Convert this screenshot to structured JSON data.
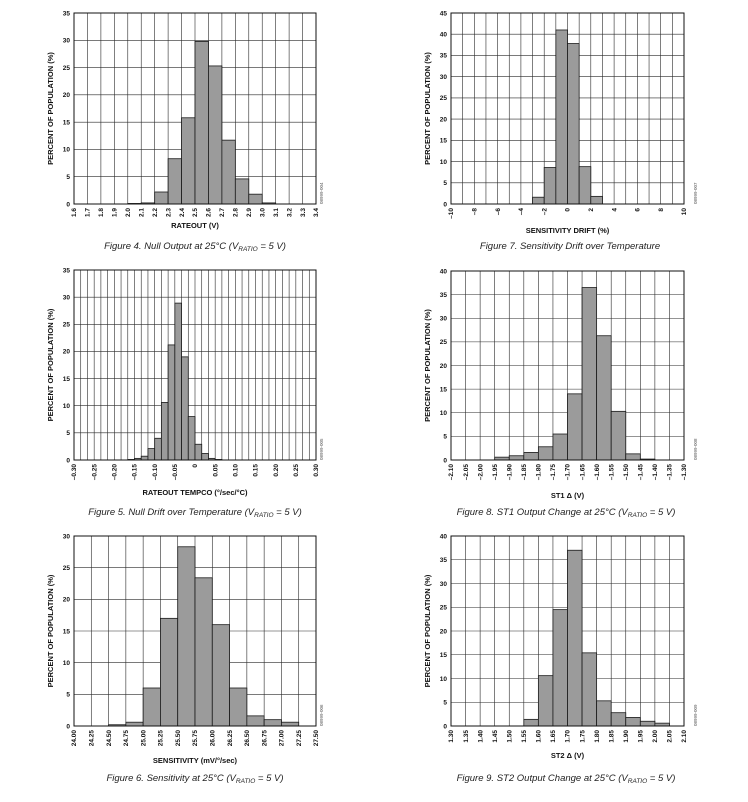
{
  "chart_data": [
    {
      "type": "bar",
      "title": "Figure 4. Null Output at 25°C (VRATIO = 5 V)",
      "caption_main": "Figure 4. Null Output at 25°C (V",
      "caption_sub": "RATIO",
      "caption_end": " = 5 V)",
      "xlabel": "RATEOUT (V)",
      "ylabel": "PERCENT OF POPULATION (%)",
      "code": "08999-004",
      "ylim": [
        0,
        35
      ],
      "yticks": [
        0,
        5,
        10,
        15,
        20,
        25,
        30,
        35
      ],
      "x_ticks": [
        "1.6",
        "1.7",
        "1.8",
        "1.9",
        "2.0",
        "2.1",
        "2.2",
        "2.3",
        "2.4",
        "2.5",
        "2.6",
        "2.7",
        "2.8",
        "2.9",
        "3.0",
        "3.1",
        "3.2",
        "3.3",
        "3.4"
      ],
      "values": [
        0,
        0,
        0,
        0,
        0.1,
        0.2,
        2.2,
        8.3,
        15.8,
        29.8,
        25.3,
        11.7,
        4.6,
        1.8,
        0.2,
        0,
        0,
        0
      ]
    },
    {
      "type": "bar",
      "title": "Figure 7. Sensitivity Drift over Temperature",
      "caption_main": "Figure 7. Sensitivity Drift over Temperature",
      "caption_sub": "",
      "caption_end": "",
      "xlabel": "SENSITIVITY DRIFT (%)",
      "ylabel": "PERCENT OF POPULATION (%)",
      "code": "08999-007",
      "ylim": [
        0,
        45
      ],
      "yticks": [
        0,
        5,
        10,
        15,
        20,
        25,
        30,
        35,
        40,
        45
      ],
      "x_ticks": [
        "–10",
        "–8",
        "–6",
        "–4",
        "–2",
        "0",
        "2",
        "4",
        "6",
        "8",
        "10"
      ],
      "values": [
        0,
        0,
        0,
        0,
        0,
        0,
        0,
        1.6,
        8.6,
        41.0,
        37.8,
        8.8,
        1.8,
        0,
        0,
        0,
        0,
        0,
        0,
        0
      ]
    },
    {
      "type": "bar",
      "title": "Figure 5. Null Drift over Temperature (VRATIO = 5 V)",
      "caption_main": "Figure 5. Null Drift over Temperature (V",
      "caption_sub": "RATIO",
      "caption_end": " = 5 V)",
      "xlabel": "RATEOUT TEMPCO (°/sec/°C)",
      "ylabel": "PERCENT OF POPULATION (%)",
      "code": "08999-005",
      "ylim": [
        0,
        35
      ],
      "yticks": [
        0,
        5,
        10,
        15,
        20,
        25,
        30,
        35
      ],
      "x_ticks": [
        "–0.30",
        "–0.25",
        "–0.20",
        "–0.15",
        "–0.10",
        "–0.05",
        "0",
        "0.05",
        "0.10",
        "0.15",
        "0.20",
        "0.25",
        "0.30"
      ],
      "values": [
        0,
        0,
        0,
        0,
        0,
        0,
        0,
        0,
        0.1,
        0.3,
        0.7,
        2.1,
        4.0,
        10.6,
        21.2,
        28.9,
        19.0,
        8.0,
        2.9,
        1.2,
        0.3,
        0.1,
        0,
        0,
        0,
        0,
        0,
        0,
        0,
        0,
        0,
        0,
        0,
        0,
        0,
        0
      ]
    },
    {
      "type": "bar",
      "title": "Figure 8. ST1 Output Change at 25°C (VRATIO = 5 V)",
      "caption_main": "Figure 8. ST1 Output Change at 25°C (V",
      "caption_sub": "RATIO",
      "caption_end": " = 5 V)",
      "xlabel": "ST1 Δ (V)",
      "ylabel": "PERCENT OF POPULATION (%)",
      "code": "08999-008",
      "ylim": [
        0,
        40
      ],
      "yticks": [
        0,
        5,
        10,
        15,
        20,
        25,
        30,
        35,
        40
      ],
      "x_ticks": [
        "–2.10",
        "–2.05",
        "–2.00",
        "–1.95",
        "–1.90",
        "–1.85",
        "–1.80",
        "–1.75",
        "–1.70",
        "–1.65",
        "–1.60",
        "–1.55",
        "–1.50",
        "–1.45",
        "–1.40",
        "–1.35",
        "–1.30"
      ],
      "values": [
        0,
        0,
        0,
        0.6,
        0.9,
        1.6,
        2.8,
        5.5,
        14.0,
        36.5,
        26.3,
        10.3,
        1.3,
        0.2,
        0,
        0
      ]
    },
    {
      "type": "bar",
      "title": "Figure 6. Sensitivity at 25°C (VRATIO = 5 V)",
      "caption_main": "Figure 6. Sensitivity at 25°C (V",
      "caption_sub": "RATIO",
      "caption_end": " = 5 V)",
      "xlabel": "SENSITIVITY (mV/°/sec)",
      "ylabel": "PERCENT OF POPULATION (%)",
      "code": "08999-006",
      "ylim": [
        0,
        30
      ],
      "yticks": [
        0,
        5,
        10,
        15,
        20,
        25,
        30
      ],
      "x_ticks": [
        "24.00",
        "24.25",
        "24.50",
        "24.75",
        "25.00",
        "25.25",
        "25.50",
        "25.75",
        "26.00",
        "26.25",
        "26.50",
        "26.75",
        "27.00",
        "27.25",
        "27.50"
      ],
      "values": [
        0,
        0,
        0.2,
        0.6,
        6.0,
        17.0,
        28.3,
        23.4,
        16.0,
        6.0,
        1.6,
        1.0,
        0.6,
        0
      ]
    },
    {
      "type": "bar",
      "title": "Figure 9. ST2 Output Change at 25°C (VRATIO = 5 V)",
      "caption_main": "Figure 9. ST2 Output Change at 25°C (V",
      "caption_sub": "RATIO",
      "caption_end": " = 5 V)",
      "xlabel": "ST2 Δ (V)",
      "ylabel": "PERCENT OF POPULATION (%)",
      "code": "08999-009",
      "ylim": [
        0,
        40
      ],
      "yticks": [
        0,
        5,
        10,
        15,
        20,
        25,
        30,
        35,
        40
      ],
      "x_ticks": [
        "1.30",
        "1.35",
        "1.40",
        "1.45",
        "1.50",
        "1.55",
        "1.60",
        "1.65",
        "1.70",
        "1.75",
        "1.80",
        "1.85",
        "1.90",
        "1.95",
        "2.00",
        "2.05",
        "2.10"
      ],
      "values": [
        0,
        0,
        0,
        0,
        0,
        1.4,
        10.6,
        24.5,
        37.0,
        15.4,
        5.3,
        2.8,
        1.8,
        1.0,
        0.6,
        0
      ]
    }
  ]
}
